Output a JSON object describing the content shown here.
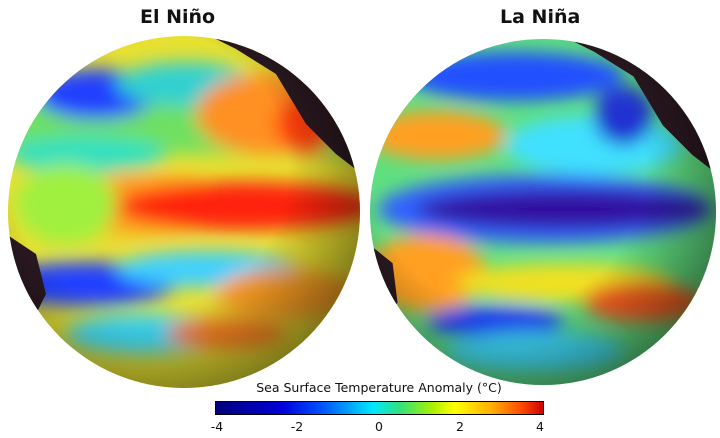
{
  "panels": [
    {
      "title": "El Niño"
    },
    {
      "title": "La Niña"
    }
  ],
  "colorbar": {
    "title": "Sea Surface Temperature Anomaly (°C)",
    "ticks": [
      "-4",
      "-2",
      "0",
      "2",
      "4"
    ],
    "range": [
      -4,
      4
    ],
    "colors": [
      "#00007a",
      "#0000d8",
      "#0050ff",
      "#00e8ff",
      "#30e080",
      "#a8f000",
      "#ffff00",
      "#ffb000",
      "#ff5000",
      "#d00000"
    ]
  }
}
